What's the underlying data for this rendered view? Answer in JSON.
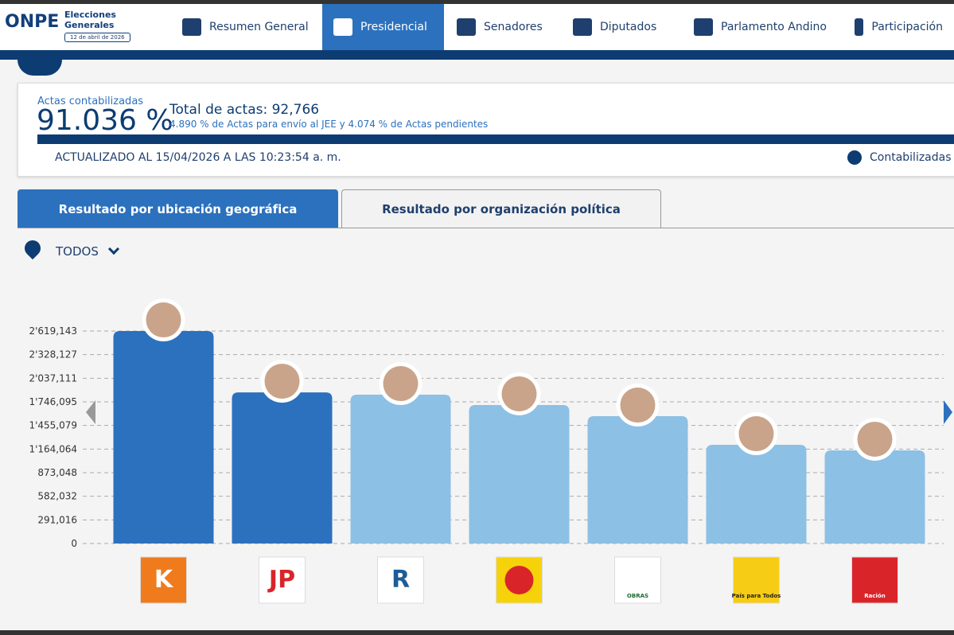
{
  "header": {
    "logo": "ONPE",
    "title": "Elecciones Generales",
    "date": "12 de abril de 2026"
  },
  "nav": [
    "Resumen General",
    "Presidencial",
    "Senadores",
    "Diputados",
    "Parlamento Andino",
    "Participación"
  ],
  "summary": {
    "label": "Actas contabilizadas",
    "percent": "91.036 %",
    "total": "Total de actas: 92,766",
    "note": "4.890 % de Actas para envío al JEE y 4.074 % de Actas pendientes",
    "updated": "ACTUALIZADO AL 15/04/2026 A LAS 10:23:54 a. m.",
    "legend": "Contabilizadas"
  },
  "tabs": [
    "Resultado por ubicación geográfica",
    "Resultado por organización política"
  ],
  "filter": "TODOS",
  "party_logos": [
    "K",
    "JP",
    "R",
    null,
    "OBRAS",
    "País para Todos",
    "Ración"
  ],
  "chart_data": {
    "type": "bar",
    "values": [
      2619000,
      1863000,
      1834000,
      1707000,
      1569000,
      1216000,
      1148000
    ],
    "colors": [
      "#2c71be",
      "#2c71be",
      "#8cc0e4",
      "#8cc0e4",
      "#8cc0e4",
      "#8cc0e4",
      "#8cc0e4"
    ],
    "ylim": [
      0,
      2619143
    ],
    "yticks": [
      0,
      {
        "value": 291016,
        "label": "291,016"
      },
      {
        "value": 582032,
        "label": "582,032"
      },
      {
        "value": 873048,
        "label": "873,048"
      },
      {
        "value": 1164064,
        "label": "1'164,064"
      },
      {
        "value": 1455079,
        "label": "1'455,079"
      },
      {
        "value": 1746095,
        "label": "1'746,095"
      },
      {
        "value": 2037111,
        "label": "2'037,111"
      },
      {
        "value": 2328127,
        "label": "2'328,127"
      },
      {
        "value": 2619143,
        "label": "2'619,143"
      }
    ],
    "grid": true
  }
}
